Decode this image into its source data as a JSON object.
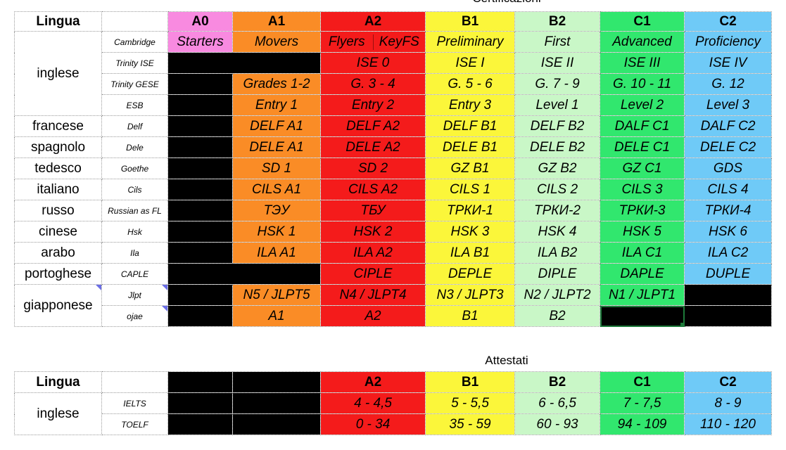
{
  "cert": {
    "caption": "Certificazioni",
    "headers": {
      "lingua": "Lingua",
      "a0": "A0",
      "a1": "A1",
      "a2": "A2",
      "b1": "B1",
      "b2": "B2",
      "c1": "C1",
      "c2": "C2"
    },
    "inglese": {
      "lang": "inglese",
      "cambridge": {
        "exam": "Cambridge",
        "a0": "Starters",
        "a1": "Movers",
        "a2a": "Flyers",
        "a2b": "KeyFS",
        "b1": "Preliminary",
        "b2": "First",
        "c1": "Advanced",
        "c2": "Proficiency"
      },
      "trinity_ise": {
        "exam": "Trinity ISE",
        "a2": "ISE 0",
        "b1": "ISE I",
        "b2": "ISE II",
        "c1": "ISE III",
        "c2": "ISE IV"
      },
      "trinity_gese": {
        "exam": "Trinity GESE",
        "a1": "Grades 1-2",
        "a2": "G. 3 - 4",
        "b1": "G. 5 - 6",
        "b2": "G. 7 - 9",
        "c1": "G. 10 - 11",
        "c2": "G. 12"
      },
      "esb": {
        "exam": "ESB",
        "a1": "Entry 1",
        "a2": "Entry 2",
        "b1": "Entry 3",
        "b2": "Level 1",
        "c1": "Level 2",
        "c2": "Level 3"
      }
    },
    "francese": {
      "lang": "francese",
      "exam": "Delf",
      "a1": "DELF A1",
      "a2": "DELF A2",
      "b1": "DELF B1",
      "b2": "DELF B2",
      "c1": "DALF C1",
      "c2": "DALF C2"
    },
    "spagnolo": {
      "lang": "spagnolo",
      "exam": "Dele",
      "a1": "DELE A1",
      "a2": "DELE A2",
      "b1": "DELE B1",
      "b2": "DELE B2",
      "c1": "DELE C1",
      "c2": "DELE C2"
    },
    "tedesco": {
      "lang": "tedesco",
      "exam": "Goethe",
      "a1": "SD 1",
      "a2": "SD 2",
      "b1": "GZ B1",
      "b2": "GZ B2",
      "c1": "GZ C1",
      "c2": "GDS"
    },
    "italiano": {
      "lang": "italiano",
      "exam": "Cils",
      "a1": "CILS A1",
      "a2": "CILS A2",
      "b1": "CILS 1",
      "b2": "CILS 2",
      "c1": "CILS 3",
      "c2": "CILS 4"
    },
    "russo": {
      "lang": "russo",
      "exam": "Russian as FL",
      "a1": "ТЭУ",
      "a2": "ТБУ",
      "b1": "ТРКИ-1",
      "b2": "ТРКИ-2",
      "c1": "ТРКИ-3",
      "c2": "ТРКИ-4"
    },
    "cinese": {
      "lang": "cinese",
      "exam": "Hsk",
      "a1": "HSK 1",
      "a2": "HSK 2",
      "b1": "HSK 3",
      "b2": "HSK 4",
      "c1": "HSK 5",
      "c2": "HSK 6"
    },
    "arabo": {
      "lang": "arabo",
      "exam": "Ila",
      "a1": "ILA A1",
      "a2": "ILA A2",
      "b1": "ILA B1",
      "b2": "ILA B2",
      "c1": "ILA C1",
      "c2": "ILA C2"
    },
    "portoghese": {
      "lang": "portoghese",
      "exam": "CAPLE",
      "a2": "CIPLE",
      "b1": "DEPLE",
      "b2": "DIPLE",
      "c1": "DAPLE",
      "c2": "DUPLE"
    },
    "giapponese": {
      "lang": "giapponese",
      "jlpt": {
        "exam": "Jlpt",
        "a1": "N5 / JLPT5",
        "a2": "N4 / JLPT4",
        "b1": "N3 / JLPT3",
        "b2": "N2 / JLPT2",
        "c1": "N1 / JLPT1"
      },
      "ojae": {
        "exam": "ojae",
        "a1": "A1",
        "a2": "A2",
        "b1": "B1",
        "b2": "B2"
      }
    }
  },
  "att": {
    "caption": "Attestati",
    "headers": {
      "lingua": "Lingua",
      "a2": "A2",
      "b1": "B1",
      "b2": "B2",
      "c1": "C1",
      "c2": "C2"
    },
    "inglese": {
      "lang": "inglese",
      "ielts": {
        "exam": "IELTS",
        "a2": "4 - 4,5",
        "b1": "5 - 5,5",
        "b2": "6 - 6,5",
        "c1": "7 - 7,5",
        "c2": "8 - 9"
      },
      "toelf": {
        "exam": "TOELF",
        "a2": "0 - 34",
        "b1": "35 - 59",
        "b2": "60 - 93",
        "c1": "94 - 109",
        "c2": "110 - 120"
      }
    }
  },
  "colors": {
    "A0": "#f88ae0",
    "A1": "#fa8c26",
    "A2": "#f41b1b",
    "B1": "#fbf63a",
    "B2": "#c9f7c7",
    "C1": "#31e76e",
    "C2": "#6fcaf7"
  }
}
